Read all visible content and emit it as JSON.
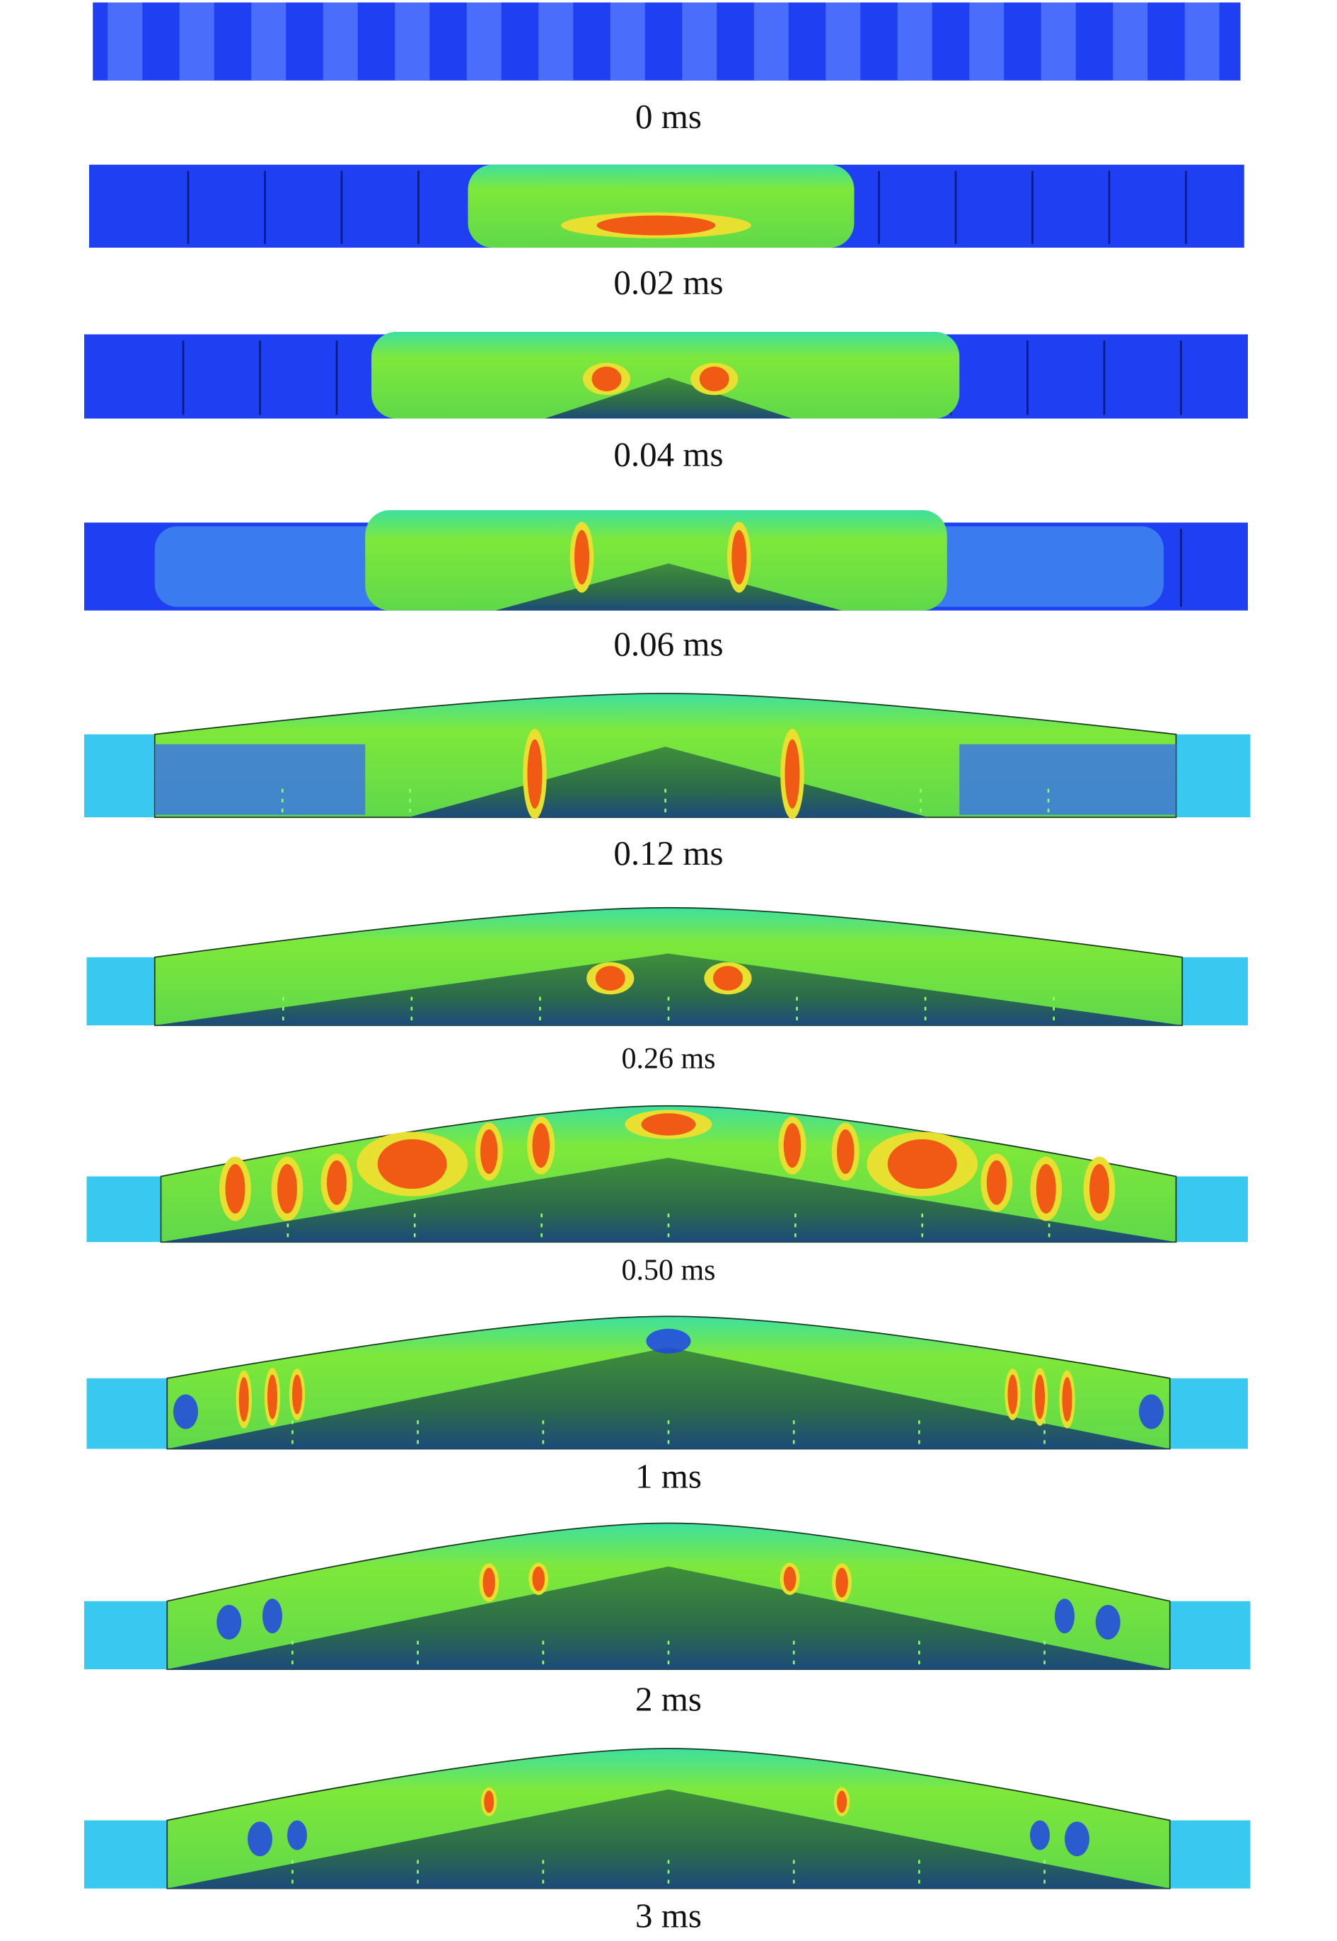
{
  "frames": [
    {
      "label": "0 ms"
    },
    {
      "label": "0.02 ms"
    },
    {
      "label": "0.04 ms"
    },
    {
      "label": "0.06 ms"
    },
    {
      "label": "0.12 ms"
    },
    {
      "label": "0.26 ms"
    },
    {
      "label": "0.50 ms"
    },
    {
      "label": "1 ms"
    },
    {
      "label": "2 ms"
    },
    {
      "label": "3 ms"
    }
  ]
}
